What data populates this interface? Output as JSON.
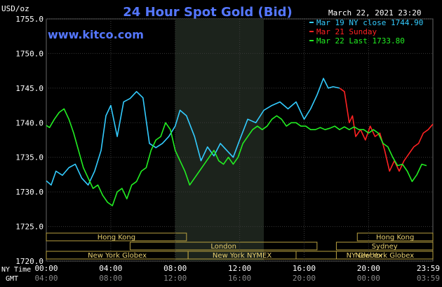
{
  "header": {
    "units": "USD/oz",
    "title": "24 Hour Spot Gold (Bid)",
    "date": "March 22, 2021 23:20",
    "site": "www.kitco.com"
  },
  "legend": {
    "items": [
      {
        "text": "Mar 19 NY close 1744.90",
        "color": "#33ccff"
      },
      {
        "text": "Mar 21 Sunday",
        "color": "#ff2222"
      },
      {
        "text": "Mar 22 Last 1733.80",
        "color": "#22ee22"
      }
    ]
  },
  "axes": {
    "ny_label": "NY Time",
    "gmt_label": "GMT",
    "y_ticks": [
      "1755.0",
      "1750.0",
      "1745.0",
      "1740.0",
      "1735.0",
      "1730.0",
      "1725.0",
      "1720.0"
    ],
    "x_ticks_ny": [
      "00:00",
      "04:00",
      "08:00",
      "12:00",
      "16:00",
      "20:00",
      "23:59"
    ],
    "x_ticks_gmt": [
      "04:00",
      "08:00",
      "12:00",
      "16:00",
      "20:00",
      "00:00",
      "03:59"
    ]
  },
  "sessions": [
    {
      "label": "Hong Kong",
      "row": 0,
      "start": 0,
      "end": 8.7
    },
    {
      "label": "London",
      "row": 1,
      "start": 5.2,
      "end": 16.8
    },
    {
      "label": "New York Globex",
      "row": 2,
      "start": 0,
      "end": 8.8
    },
    {
      "label": "New York NYMEX",
      "row": 2,
      "start": 8.8,
      "end": 15.5
    },
    {
      "label": "NY Globex",
      "row": 2,
      "start": 15.5,
      "end": 23.99
    },
    {
      "label": "Hong Kong",
      "row": 0,
      "start": 19.3,
      "end": 23.99
    },
    {
      "label": "Sydney",
      "row": 1,
      "start": 18.0,
      "end": 23.99
    },
    {
      "label": "New York Globex",
      "row": 2,
      "start": 18.0,
      "end": 23.99
    }
  ],
  "chart_data": {
    "type": "line",
    "title": "24 Hour Spot Gold (Bid)",
    "ylabel": "USD/oz",
    "xlabel": "NY Time",
    "ylim": [
      1720,
      1755
    ],
    "xlim": [
      0,
      23.99
    ],
    "shaded_region": [
      8.0,
      13.5
    ],
    "grid": true,
    "legend_position": "top-right",
    "series": [
      {
        "name": "Mar 19 NY close 1744.90",
        "color": "#33ccff",
        "x": [
          0,
          0.3,
          0.6,
          1.0,
          1.4,
          1.8,
          2.2,
          2.6,
          3.0,
          3.4,
          3.7,
          4.0,
          4.4,
          4.8,
          5.2,
          5.6,
          6.0,
          6.4,
          6.8,
          7.2,
          7.6,
          8.0,
          8.3,
          8.7,
          9.2,
          9.6,
          10.0,
          10.4,
          10.8,
          11.2,
          11.6,
          12.0,
          12.5,
          13.0,
          13.5,
          14.0,
          14.5,
          15.0,
          15.5,
          16.0,
          16.4,
          16.8,
          17.2,
          17.5,
          17.8,
          18.2
        ],
        "y": [
          1731.6,
          1731.0,
          1733.0,
          1732.4,
          1733.5,
          1734.0,
          1732.0,
          1731.0,
          1733.0,
          1736.0,
          1741.0,
          1742.5,
          1738.0,
          1743.0,
          1743.5,
          1744.5,
          1743.6,
          1737.0,
          1736.4,
          1737.0,
          1738.0,
          1739.5,
          1741.8,
          1741.0,
          1738.0,
          1734.5,
          1736.5,
          1735.2,
          1737.0,
          1736.0,
          1735.0,
          1737.5,
          1740.5,
          1740.0,
          1741.8,
          1742.5,
          1743.0,
          1742.0,
          1743.0,
          1740.5,
          1742.0,
          1744.0,
          1746.4,
          1745.0,
          1745.2,
          1745.0
        ]
      },
      {
        "name": "Mar 21 Sunday",
        "color": "#ff2222",
        "x": [
          18.2,
          18.5,
          18.8,
          19.0,
          19.2,
          19.5,
          19.8,
          20.1,
          20.4,
          20.7,
          21.0,
          21.3,
          21.6,
          21.9,
          22.2,
          22.5,
          22.8,
          23.1,
          23.4,
          23.7,
          23.99
        ],
        "y": [
          1745.0,
          1744.5,
          1740.0,
          1741.0,
          1738.0,
          1739.0,
          1737.5,
          1739.5,
          1738.0,
          1738.5,
          1736.0,
          1733.0,
          1734.5,
          1733.0,
          1734.5,
          1735.5,
          1736.5,
          1737.0,
          1738.5,
          1739.0,
          1739.8
        ]
      },
      {
        "name": "Mar 22 Last 1733.80",
        "color": "#22ee22",
        "x": [
          0,
          0.2,
          0.5,
          0.8,
          1.1,
          1.4,
          1.7,
          2.0,
          2.3,
          2.6,
          2.9,
          3.2,
          3.5,
          3.8,
          4.1,
          4.4,
          4.7,
          5.0,
          5.3,
          5.6,
          5.9,
          6.2,
          6.5,
          6.8,
          7.1,
          7.4,
          7.7,
          8.0,
          8.3,
          8.6,
          8.9,
          9.2,
          9.5,
          9.8,
          10.1,
          10.4,
          10.7,
          11.0,
          11.3,
          11.6,
          11.9,
          12.2,
          12.5,
          12.8,
          13.1,
          13.4,
          13.7,
          14.0,
          14.3,
          14.6,
          14.9,
          15.2,
          15.5,
          15.8,
          16.1,
          16.4,
          16.7,
          17.0,
          17.3,
          17.6,
          17.9,
          18.2,
          18.5,
          18.8,
          19.1,
          19.4,
          19.7,
          20.0,
          20.3,
          20.6,
          20.9,
          21.2,
          21.5,
          21.8,
          22.1,
          22.4,
          22.7,
          23.0,
          23.3,
          23.6
        ],
        "y": [
          1739.6,
          1739.3,
          1740.5,
          1741.5,
          1742.0,
          1740.5,
          1738.5,
          1736.0,
          1733.5,
          1732.0,
          1730.5,
          1731.0,
          1729.5,
          1728.5,
          1728.0,
          1730.0,
          1730.5,
          1729.0,
          1731.0,
          1731.5,
          1733.0,
          1733.5,
          1736.0,
          1737.5,
          1738.0,
          1740.0,
          1739.0,
          1736.0,
          1734.5,
          1733.0,
          1731.0,
          1732.0,
          1733.0,
          1734.0,
          1735.0,
          1736.0,
          1734.5,
          1734.0,
          1735.0,
          1734.0,
          1735.0,
          1737.0,
          1738.0,
          1739.0,
          1739.5,
          1739.0,
          1739.5,
          1740.5,
          1741.0,
          1740.5,
          1739.5,
          1740.0,
          1740.0,
          1739.5,
          1739.5,
          1739.0,
          1739.0,
          1739.3,
          1739.0,
          1739.2,
          1739.5,
          1739.0,
          1739.4,
          1739.0,
          1739.4,
          1739.0,
          1739.0,
          1738.5,
          1739.0,
          1738.5,
          1737.0,
          1736.5,
          1735.0,
          1733.8,
          1734.0,
          1733.0,
          1731.5,
          1732.5,
          1734.0,
          1733.8
        ]
      }
    ]
  }
}
